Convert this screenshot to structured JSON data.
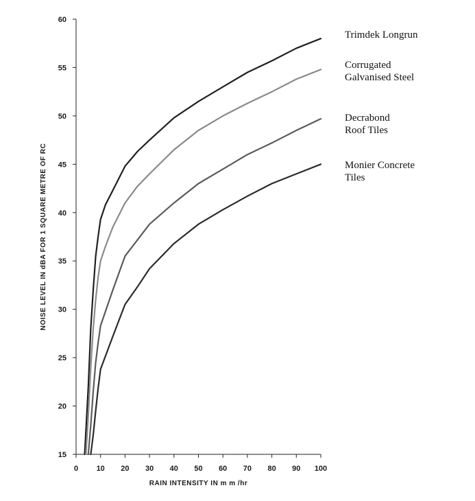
{
  "chart_data": {
    "type": "line",
    "title": "",
    "xlabel": "RAIN INTENSITY IN m m /hr",
    "ylabel": "NOISE LEVEL IN dBA FOR 1 SQUARE METRE OF RC",
    "xlim": [
      0,
      100
    ],
    "ylim": [
      15,
      60
    ],
    "xticks": [
      "0",
      "10",
      "20",
      "30",
      "40",
      "50",
      "60",
      "70",
      "80",
      "90",
      "100"
    ],
    "yticks": [
      "15",
      "20",
      "25",
      "30",
      "35",
      "40",
      "45",
      "50",
      "55",
      "60"
    ],
    "grid": false,
    "legend_position": "right",
    "series": [
      {
        "name": "Trimdek Longrun",
        "label_lines": [
          "Trimdek Longrun"
        ],
        "color": "#1f1f1f",
        "x": [
          3.5,
          5,
          6,
          7,
          8,
          9,
          10,
          12,
          15,
          20,
          25,
          30,
          40,
          50,
          60,
          70,
          80,
          90,
          100
        ],
        "y": [
          15,
          22,
          28,
          32,
          35.5,
          37.5,
          39.3,
          40.8,
          42.3,
          44.8,
          46.3,
          47.5,
          49.8,
          51.5,
          53,
          54.5,
          55.7,
          57,
          58
        ]
      },
      {
        "name": "Corrugated Galvanised Steel",
        "label_lines": [
          "Corrugated",
          "Galvanised Steel"
        ],
        "color": "#8a8a8a",
        "x": [
          4,
          5,
          6,
          7,
          8,
          9,
          10,
          12,
          15,
          20,
          25,
          30,
          40,
          50,
          60,
          70,
          80,
          90,
          100
        ],
        "y": [
          15,
          19,
          24,
          28,
          31,
          33.3,
          35,
          36.5,
          38.5,
          41,
          42.7,
          44,
          46.5,
          48.5,
          50,
          51.3,
          52.5,
          53.8,
          54.8
        ]
      },
      {
        "name": "Decrabond Roof Tiles",
        "label_lines": [
          "Decrabond",
          "Roof Tiles"
        ],
        "color": "#5a5a5a",
        "x": [
          5,
          6,
          7,
          8,
          9,
          10,
          15,
          20,
          30,
          40,
          50,
          60,
          70,
          80,
          90,
          100
        ],
        "y": [
          15,
          18,
          21.5,
          24.5,
          26.5,
          28.3,
          32,
          35.5,
          38.8,
          41,
          43,
          44.5,
          46,
          47.2,
          48.5,
          49.7
        ]
      },
      {
        "name": "Monier Concrete Tiles",
        "label_lines": [
          "Monier Concrete",
          "Tiles"
        ],
        "color": "#2a2a2a",
        "x": [
          6,
          7,
          8,
          9,
          10,
          15,
          20,
          25,
          30,
          40,
          50,
          60,
          70,
          80,
          90,
          100
        ],
        "y": [
          15,
          17,
          19.5,
          21.8,
          23.8,
          27.2,
          30.5,
          32.3,
          34.2,
          36.8,
          38.8,
          40.3,
          41.7,
          43,
          44,
          45
        ]
      }
    ]
  }
}
